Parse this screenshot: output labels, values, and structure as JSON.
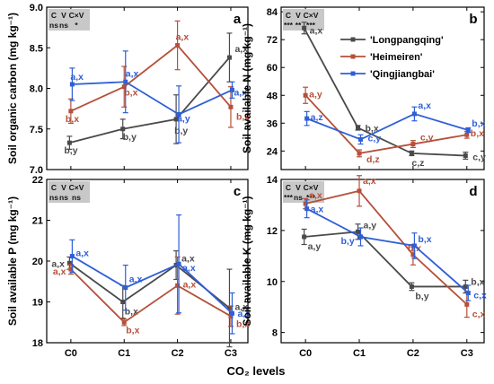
{
  "figure": {
    "xlabel": "CO₂ levels"
  },
  "colors": {
    "Longpangqing": "#4a4a4a",
    "Heimeiren": "#b5503a",
    "Qingjiangbai": "#2f5fd6",
    "stat_box": "#c8c8c8"
  },
  "legend": {
    "items": [
      {
        "series": "Longpangqing",
        "label": "'Longpangqing'"
      },
      {
        "series": "Heimeiren",
        "label": "'Heimeiren'"
      },
      {
        "series": "Qingjiangbai",
        "label": "'Qingjiangbai'"
      }
    ]
  },
  "chart_data": [
    {
      "type": "line",
      "panel": "a",
      "ylabel": "Soil organic carbon (mg kg⁻¹)",
      "categories": [
        "C0",
        "C1",
        "C2",
        "C3"
      ],
      "ylim": [
        7.0,
        9.0
      ],
      "yticks": [
        7.0,
        7.5,
        8.0,
        8.5,
        9.0
      ],
      "tick_labels": [
        "7.0",
        "7.5",
        "8.0",
        "8.5",
        "9.0"
      ],
      "stats": {
        "header": [
          "C",
          "V",
          "C×V"
        ],
        "values": [
          "ns",
          "ns",
          "*"
        ]
      },
      "series": [
        {
          "name": "Longpangqing",
          "values": [
            7.33,
            7.5,
            7.62,
            8.38
          ],
          "errors": [
            0.08,
            0.12,
            0.3,
            0.3
          ],
          "labels": [
            "b,y",
            "b,y",
            "b,y",
            "a,x"
          ]
        },
        {
          "name": "Heimeiren",
          "values": [
            7.72,
            8.02,
            8.53,
            7.77
          ],
          "errors": [
            0.15,
            0.25,
            0.3,
            0.25
          ],
          "labels": [
            "b,x",
            "b,x",
            "a,x",
            "b,x"
          ]
        },
        {
          "name": "Qingjiangbai",
          "values": [
            8.05,
            8.08,
            7.68,
            7.98
          ],
          "errors": [
            0.2,
            0.38,
            0.35,
            0.1
          ],
          "labels": [
            "a,x",
            "a,x",
            "a,y",
            "a,x"
          ]
        }
      ]
    },
    {
      "type": "line",
      "panel": "b",
      "ylabel": "Soil available N (mg kg⁻¹)",
      "categories": [
        "C0",
        "C1",
        "C2",
        "C3"
      ],
      "ylim": [
        16,
        86
      ],
      "yticks": [
        24,
        36,
        48,
        60,
        72,
        84
      ],
      "tick_labels": [
        "24",
        "36",
        "48",
        "60",
        "72",
        "84"
      ],
      "stats": {
        "header": [
          "C",
          "V",
          "C×V"
        ],
        "values": [
          "***",
          "**",
          "***"
        ]
      },
      "series": [
        {
          "name": "Longpangqing",
          "values": [
            77,
            34,
            23,
            22
          ],
          "errors": [
            2.5,
            1,
            1,
            1.5
          ],
          "labels": [
            "a,x",
            "b,x",
            "c,z",
            "c,y"
          ]
        },
        {
          "name": "Heimeiren",
          "values": [
            48,
            23,
            27,
            31
          ],
          "errors": [
            3.5,
            1.5,
            1.5,
            1.5
          ],
          "labels": [
            "a,y",
            "d,z",
            "c,y",
            "b,x"
          ]
        },
        {
          "name": "Qingjiangbai",
          "values": [
            38,
            29,
            40,
            33
          ],
          "errors": [
            3,
            2,
            3,
            1
          ],
          "labels": [
            "a,z",
            "c,y",
            "a,x",
            "b,x"
          ]
        }
      ]
    },
    {
      "type": "line",
      "panel": "c",
      "ylabel": "Soil available P (mg kg⁻¹)",
      "categories": [
        "C0",
        "C1",
        "C2",
        "C3"
      ],
      "ylim": [
        18,
        22
      ],
      "yticks": [
        18,
        19,
        20,
        21,
        22
      ],
      "tick_labels": [
        "18",
        "19",
        "20",
        "21",
        "22"
      ],
      "stats": {
        "header": [
          "C",
          "V",
          "C×V"
        ],
        "values": [
          "ns",
          "ns",
          "ns"
        ]
      },
      "series": [
        {
          "name": "Longpangqing",
          "values": [
            19.95,
            19.0,
            19.9,
            18.85
          ],
          "errors": [
            0.15,
            0.4,
            0.35,
            0.95
          ],
          "labels": [
            "a,x",
            "b,x",
            "a,x",
            "a,x"
          ]
        },
        {
          "name": "Heimeiren",
          "values": [
            19.8,
            18.5,
            19.4,
            18.65
          ],
          "errors": [
            0.12,
            0.08,
            0.7,
            0.25
          ],
          "labels": [
            "a,x",
            "b,x",
            "a,x",
            "b,x"
          ]
        },
        {
          "name": "Qingjiangbai",
          "values": [
            20.12,
            19.35,
            19.93,
            18.72
          ],
          "errors": [
            0.4,
            0.55,
            1.2,
            0.5
          ],
          "labels": [
            "a,x",
            "a,x",
            "a,x",
            "a,x"
          ]
        }
      ]
    },
    {
      "type": "line",
      "panel": "d",
      "ylabel": "Soil available K (mg kg⁻¹)",
      "categories": [
        "C0",
        "C1",
        "C2",
        "C3"
      ],
      "ylim": [
        7.6,
        14
      ],
      "yticks": [
        8,
        10,
        12,
        14
      ],
      "tick_labels": [
        "8",
        "10",
        "12",
        "14"
      ],
      "stats": {
        "header": [
          "C",
          "V",
          "C×V"
        ],
        "values": [
          "***",
          "ns",
          "***"
        ]
      },
      "series": [
        {
          "name": "Longpangqing",
          "values": [
            11.75,
            11.95,
            9.8,
            9.8
          ],
          "errors": [
            0.3,
            0.3,
            0.15,
            0.25
          ],
          "labels": [
            "a,y",
            "a,y",
            "b,y",
            "b,x"
          ]
        },
        {
          "name": "Heimeiren",
          "values": [
            13.05,
            13.55,
            11.05,
            9.1
          ],
          "errors": [
            0.2,
            0.6,
            0.4,
            0.5
          ],
          "labels": [
            "a,x",
            "a,x",
            "b,x",
            "c,x"
          ]
        },
        {
          "name": "Qingjiangbai",
          "values": [
            12.85,
            11.75,
            11.4,
            9.55
          ],
          "errors": [
            0.35,
            0.35,
            0.5,
            0.3
          ],
          "labels": [
            "a,x",
            "b,y",
            "b,x",
            "c,x"
          ]
        }
      ]
    }
  ]
}
